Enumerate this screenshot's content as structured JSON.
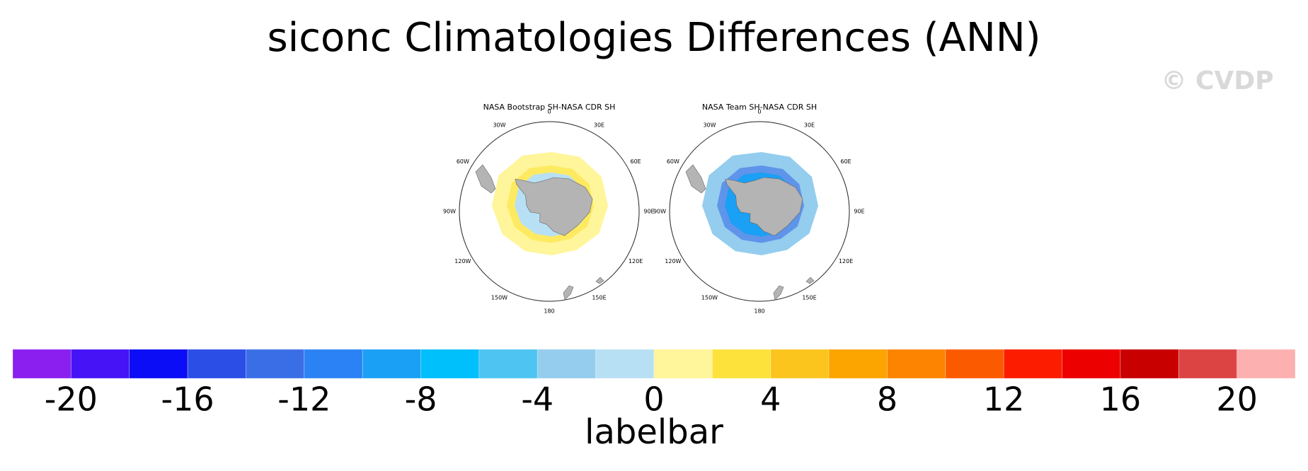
{
  "title": "siconc Climatologies Differences (ANN)",
  "watermark": "© CVDP",
  "panels": [
    {
      "title": "NASA Bootstrap SH-NASA CDR SH",
      "lon_labels": [
        "0",
        "30E",
        "60E",
        "90E",
        "120E",
        "150E",
        "180",
        "150W",
        "120W",
        "90W",
        "60W",
        "30W"
      ]
    },
    {
      "title": "NASA Team SH-NASA CDR SH",
      "lon_labels": [
        "0",
        "30E",
        "60E",
        "90E",
        "120E",
        "150E",
        "180",
        "150W",
        "120W",
        "90W",
        "60W",
        "30W"
      ]
    }
  ],
  "labelbar": {
    "title": "labelbar",
    "xlim": [
      -22,
      22
    ],
    "levels": [
      -20,
      -18,
      -16,
      -14,
      -12,
      -10,
      -8,
      -6,
      -4,
      -2,
      0,
      2,
      4,
      6,
      8,
      10,
      12,
      14,
      16,
      18,
      20
    ],
    "colors": [
      "#8a1fef",
      "#4513f6",
      "#0a0df5",
      "#2b4ee6",
      "#3a6ee6",
      "#2a82f5",
      "#1aa0f5",
      "#00c0fc",
      "#4ec4f2",
      "#94cdee",
      "#b8e0f5",
      "#fff59a",
      "#fde23c",
      "#fcc51e",
      "#fca400",
      "#fc8400",
      "#fc5a00",
      "#fc1c00",
      "#ec0000",
      "#c80000",
      "#dc4444",
      "#fdb0b0"
    ],
    "ticks": [
      -20,
      -16,
      -12,
      -8,
      -4,
      0,
      4,
      8,
      12,
      16,
      20
    ]
  }
}
